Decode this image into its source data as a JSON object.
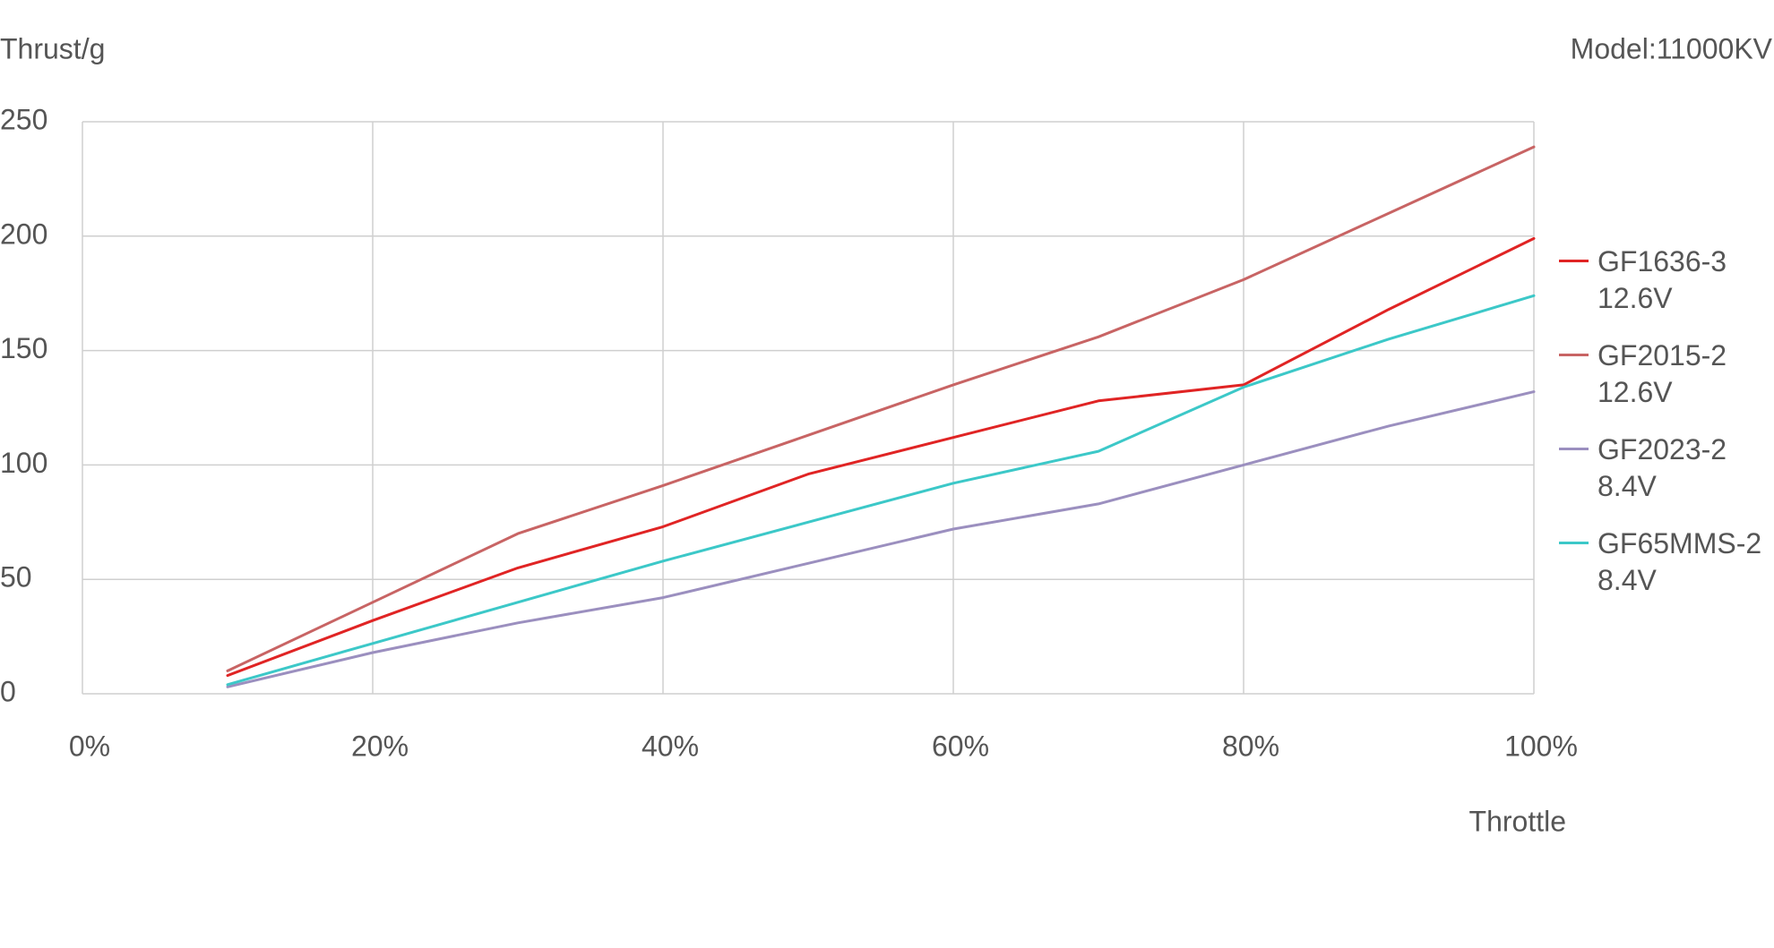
{
  "chart_data": {
    "type": "line",
    "y_label": "Thrust/g",
    "x_label": "Throttle",
    "annotation": "Model:11000KV",
    "x": [
      10,
      20,
      30,
      40,
      50,
      60,
      70,
      80,
      90,
      100
    ],
    "series": [
      {
        "name": "GF1636-3\n12.6V",
        "color": "#e02424",
        "values": [
          8,
          32,
          55,
          73,
          96,
          112,
          128,
          135,
          168,
          199
        ]
      },
      {
        "name": "GF2015-2\n12.6V",
        "color": "#c86464",
        "values": [
          10,
          40,
          70,
          91,
          113,
          135,
          156,
          181,
          210,
          239
        ]
      },
      {
        "name": "GF2023-2\n8.4V",
        "color": "#9b8fbf",
        "values": [
          3,
          18,
          31,
          42,
          57,
          72,
          83,
          100,
          117,
          132
        ]
      },
      {
        "name": "GF65MMS-2\n8.4V",
        "color": "#3cc8c8",
        "values": [
          4,
          22,
          40,
          58,
          75,
          92,
          106,
          134,
          155,
          174
        ]
      }
    ],
    "xlim": [
      0,
      100
    ],
    "xticks": [
      {
        "value": 0,
        "label": "0%"
      },
      {
        "value": 20,
        "label": "20%"
      },
      {
        "value": 40,
        "label": "40%"
      },
      {
        "value": 60,
        "label": "60%"
      },
      {
        "value": 80,
        "label": "80%"
      },
      {
        "value": 100,
        "label": "100%"
      }
    ],
    "ylim": [
      0,
      250
    ],
    "yticks": [
      0,
      50,
      100,
      150,
      200,
      250
    ],
    "grid": true
  }
}
